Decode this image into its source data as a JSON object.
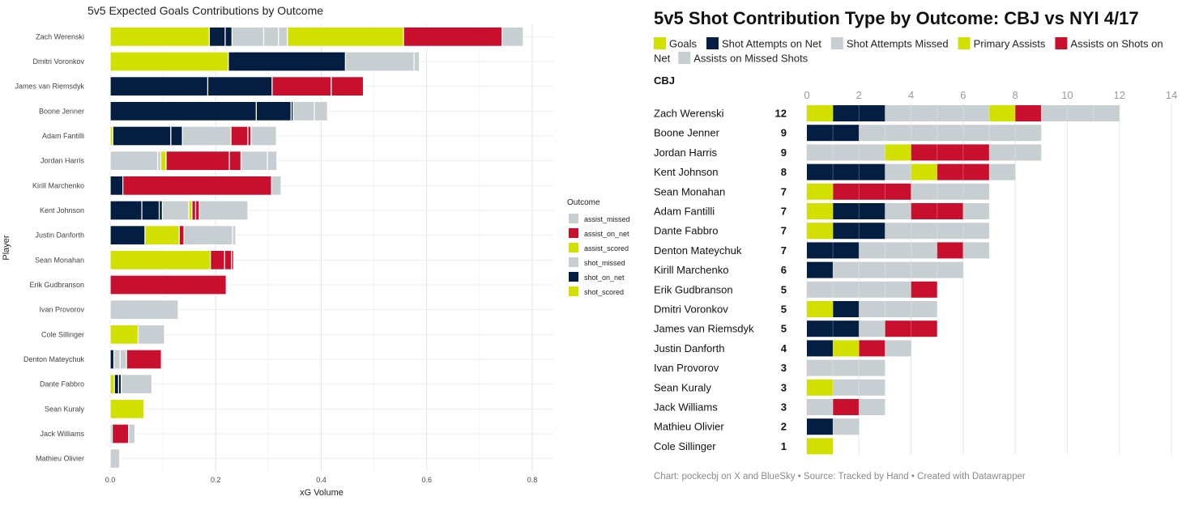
{
  "colors": {
    "assist_missed": "#c8cfd3",
    "assist_on_net": "#c8102e",
    "assist_scored": "#d2e000",
    "shot_missed": "#c8cfd3",
    "shot_on_net": "#041e42",
    "shot_scored": "#d2e000",
    "goals": "#d2e000",
    "primary_assists": "#d2e000",
    "assists_on_net": "#c8102e",
    "attempts_on_net": "#041e42",
    "attempts_missed": "#c8cfd3",
    "assists_missed": "#c8cfd3"
  },
  "chart_data": [
    {
      "type": "bar",
      "orientation": "horizontal",
      "stacked": true,
      "title": "5v5 Expected Goals Contributions by Outcome",
      "xlabel": "xG Volume",
      "ylabel": "Player",
      "xlim": [
        0,
        0.84
      ],
      "xticks": [
        0.0,
        0.2,
        0.4,
        0.6,
        0.8
      ],
      "xtick_labels": [
        "0.0",
        "0.2",
        "0.4",
        "0.6",
        "0.8"
      ],
      "grid": true,
      "legend": {
        "title": "Outcome",
        "position": "right",
        "entries": [
          {
            "key": "assist_missed",
            "label": "assist_missed"
          },
          {
            "key": "assist_on_net",
            "label": "assist_on_net"
          },
          {
            "key": "assist_scored",
            "label": "assist_scored"
          },
          {
            "key": "shot_missed",
            "label": "shot_missed"
          },
          {
            "key": "shot_on_net",
            "label": "shot_on_net"
          },
          {
            "key": "shot_scored",
            "label": "shot_scored"
          }
        ]
      },
      "players": [
        {
          "name": "Zach Werenski",
          "segments": [
            [
              "assist_scored",
              0.188
            ],
            [
              "shot_on_net",
              0.03
            ],
            [
              "shot_on_net",
              0.013
            ],
            [
              "assist_missed",
              0.06
            ],
            [
              "assist_missed",
              0.028
            ],
            [
              "assist_missed",
              0.017
            ],
            [
              "shot_scored",
              0.22
            ],
            [
              "assist_on_net",
              0.187
            ],
            [
              "shot_missed",
              0.04
            ]
          ]
        },
        {
          "name": "Dmitri Voronkov",
          "segments": [
            [
              "shot_scored",
              0.224
            ],
            [
              "shot_on_net",
              0.222
            ],
            [
              "shot_missed",
              0.13
            ],
            [
              "assist_missed",
              0.01
            ]
          ]
        },
        {
          "name": "James van Riemsdyk",
          "segments": [
            [
              "shot_on_net",
              0.185
            ],
            [
              "shot_on_net",
              0.122
            ],
            [
              "assist_on_net",
              0.112
            ],
            [
              "assist_on_net",
              0.061
            ]
          ]
        },
        {
          "name": "Boone Jenner",
          "segments": [
            [
              "shot_on_net",
              0.277
            ],
            [
              "shot_on_net",
              0.066
            ],
            [
              "shot_on_net",
              0.004
            ],
            [
              "shot_missed",
              0.04
            ],
            [
              "shot_missed",
              0.025
            ]
          ]
        },
        {
          "name": "Adam Fantilli",
          "segments": [
            [
              "shot_scored",
              0.005
            ],
            [
              "shot_on_net",
              0.11
            ],
            [
              "shot_on_net",
              0.022
            ],
            [
              "shot_missed",
              0.092
            ],
            [
              "assist_on_net",
              0.032
            ],
            [
              "assist_on_net",
              0.006
            ],
            [
              "shot_missed",
              0.048
            ]
          ]
        },
        {
          "name": "Jordan Harris",
          "segments": [
            [
              "shot_missed",
              0.09
            ],
            [
              "shot_missed",
              0.006
            ],
            [
              "assist_scored",
              0.01
            ],
            [
              "assist_on_net",
              0.12
            ],
            [
              "assist_on_net",
              0.022
            ],
            [
              "shot_missed",
              0.05
            ],
            [
              "shot_missed",
              0.018
            ]
          ]
        },
        {
          "name": "Kirill Marchenko",
          "segments": [
            [
              "shot_on_net",
              0.024
            ],
            [
              "assist_on_net",
              0.282
            ],
            [
              "shot_missed",
              0.018
            ]
          ]
        },
        {
          "name": "Kent Johnson",
          "segments": [
            [
              "shot_on_net",
              0.06
            ],
            [
              "shot_on_net",
              0.033
            ],
            [
              "shot_on_net",
              0.006
            ],
            [
              "shot_missed",
              0.05
            ],
            [
              "assist_scored",
              0.006
            ],
            [
              "assist_on_net",
              0.007
            ],
            [
              "assist_on_net",
              0.007
            ],
            [
              "shot_missed",
              0.092
            ]
          ]
        },
        {
          "name": "Justin Danforth",
          "segments": [
            [
              "shot_on_net",
              0.066
            ],
            [
              "shot_scored",
              0.065
            ],
            [
              "assist_on_net",
              0.009
            ],
            [
              "shot_missed",
              0.092
            ],
            [
              "assist_missed",
              0.006
            ]
          ]
        },
        {
          "name": "Sean Monahan",
          "segments": [
            [
              "assist_scored",
              0.19
            ],
            [
              "assist_on_net",
              0.027
            ],
            [
              "assist_on_net",
              0.013
            ],
            [
              "assist_on_net",
              0.004
            ]
          ]
        },
        {
          "name": "Erik Gudbranson",
          "segments": [
            [
              "assist_on_net",
              0.22
            ]
          ]
        },
        {
          "name": "Ivan Provorov",
          "segments": [
            [
              "shot_missed",
              0.129
            ]
          ]
        },
        {
          "name": "Cole Sillinger",
          "segments": [
            [
              "assist_scored",
              0.053
            ],
            [
              "shot_missed",
              0.05
            ]
          ]
        },
        {
          "name": "Denton Mateychuk",
          "segments": [
            [
              "shot_on_net",
              0.007
            ],
            [
              "shot_missed",
              0.012
            ],
            [
              "shot_missed",
              0.012
            ],
            [
              "assist_on_net",
              0.066
            ]
          ]
        },
        {
          "name": "Dante Fabbro",
          "segments": [
            [
              "shot_scored",
              0.008
            ],
            [
              "shot_on_net",
              0.008
            ],
            [
              "shot_on_net",
              0.005
            ],
            [
              "shot_missed",
              0.058
            ]
          ]
        },
        {
          "name": "Sean Kuraly",
          "segments": [
            [
              "assist_scored",
              0.064
            ]
          ]
        },
        {
          "name": "Jack Williams",
          "segments": [
            [
              "shot_missed",
              0.004
            ],
            [
              "assist_on_net",
              0.031
            ],
            [
              "shot_missed",
              0.012
            ]
          ]
        },
        {
          "name": "Mathieu Olivier",
          "segments": [
            [
              "shot_missed",
              0.018
            ]
          ]
        }
      ]
    },
    {
      "type": "bar",
      "orientation": "horizontal",
      "stacked": true,
      "title": "5v5 Shot Contribution Type by Outcome: CBJ vs NYI 4/17",
      "team": "CBJ",
      "xlim": [
        0,
        14
      ],
      "xticks": [
        0,
        2,
        4,
        6,
        8,
        10,
        12,
        14
      ],
      "xtick_labels": [
        "0",
        "2",
        "4",
        "6",
        "8",
        "10",
        "12",
        "14"
      ],
      "grid": true,
      "legend": {
        "position": "top",
        "line1": [
          {
            "key": "goals",
            "label": "Goals"
          },
          {
            "key": "attempts_on_net",
            "label": "Shot Attempts on Net"
          },
          {
            "key": "attempts_missed",
            "label": "Shot Attempts Missed"
          },
          {
            "key": "primary_assists",
            "label": "Primary Assists"
          },
          {
            "key": "assists_on_net",
            "label": "Assists on Shots on"
          }
        ],
        "line2_prefix": "Net",
        "line2": [
          {
            "key": "assists_missed",
            "label": "Assists on Missed Shots"
          }
        ]
      },
      "footer": "Chart: pockecbj on X and BlueSky • Source: Tracked by Hand • Created with Datawrapper",
      "players": [
        {
          "name": "Zach Werenski",
          "total": 12,
          "goals": 1,
          "on_net": 2,
          "missed": 4,
          "primary_assists": 1,
          "assists_on_net": 1,
          "assists_missed": 3
        },
        {
          "name": "Boone Jenner",
          "total": 9,
          "goals": 0,
          "on_net": 2,
          "missed": 7,
          "primary_assists": 0,
          "assists_on_net": 0,
          "assists_missed": 0
        },
        {
          "name": "Jordan Harris",
          "total": 9,
          "goals": 0,
          "on_net": 0,
          "missed": 3,
          "primary_assists": 1,
          "assists_on_net": 3,
          "assists_missed": 2
        },
        {
          "name": "Kent Johnson",
          "total": 8,
          "goals": 0,
          "on_net": 3,
          "missed": 1,
          "primary_assists": 1,
          "assists_on_net": 2,
          "assists_missed": 1
        },
        {
          "name": "Sean Monahan",
          "total": 7,
          "goals": 0,
          "on_net": 0,
          "missed": 0,
          "primary_assists": 1,
          "assists_on_net": 3,
          "assists_missed": 3
        },
        {
          "name": "Adam Fantilli",
          "total": 7,
          "goals": 1,
          "on_net": 2,
          "missed": 1,
          "primary_assists": 0,
          "assists_on_net": 2,
          "assists_missed": 1
        },
        {
          "name": "Dante Fabbro",
          "total": 7,
          "goals": 1,
          "on_net": 2,
          "missed": 4,
          "primary_assists": 0,
          "assists_on_net": 0,
          "assists_missed": 0
        },
        {
          "name": "Denton Mateychuk",
          "total": 7,
          "goals": 0,
          "on_net": 2,
          "missed": 3,
          "primary_assists": 0,
          "assists_on_net": 1,
          "assists_missed": 1
        },
        {
          "name": "Kirill Marchenko",
          "total": 6,
          "goals": 0,
          "on_net": 1,
          "missed": 5,
          "primary_assists": 0,
          "assists_on_net": 0,
          "assists_missed": 0
        },
        {
          "name": "Erik Gudbranson",
          "total": 5,
          "goals": 0,
          "on_net": 0,
          "missed": 4,
          "primary_assists": 0,
          "assists_on_net": 1,
          "assists_missed": 0
        },
        {
          "name": "Dmitri Voronkov",
          "total": 5,
          "goals": 1,
          "on_net": 1,
          "missed": 3,
          "primary_assists": 0,
          "assists_on_net": 0,
          "assists_missed": 0
        },
        {
          "name": "James van Riemsdyk",
          "total": 5,
          "goals": 0,
          "on_net": 2,
          "missed": 1,
          "primary_assists": 0,
          "assists_on_net": 2,
          "assists_missed": 0
        },
        {
          "name": "Justin Danforth",
          "total": 4,
          "goals": 0,
          "on_net": 1,
          "missed": 0,
          "primary_assists": 1,
          "assists_on_net": 1,
          "assists_missed": 1
        },
        {
          "name": "Ivan Provorov",
          "total": 3,
          "goals": 0,
          "on_net": 0,
          "missed": 3,
          "primary_assists": 0,
          "assists_on_net": 0,
          "assists_missed": 0
        },
        {
          "name": "Sean Kuraly",
          "total": 3,
          "goals": 0,
          "on_net": 0,
          "missed": 0,
          "primary_assists": 1,
          "assists_on_net": 0,
          "assists_missed": 2
        },
        {
          "name": "Jack Williams",
          "total": 3,
          "goals": 0,
          "on_net": 0,
          "missed": 1,
          "primary_assists": 0,
          "assists_on_net": 1,
          "assists_missed": 1
        },
        {
          "name": "Mathieu Olivier",
          "total": 2,
          "goals": 0,
          "on_net": 1,
          "missed": 1,
          "primary_assists": 0,
          "assists_on_net": 0,
          "assists_missed": 0
        },
        {
          "name": "Cole Sillinger",
          "total": 1,
          "goals": 0,
          "on_net": 0,
          "missed": 0,
          "primary_assists": 1,
          "assists_on_net": 0,
          "assists_missed": 0
        }
      ]
    }
  ]
}
